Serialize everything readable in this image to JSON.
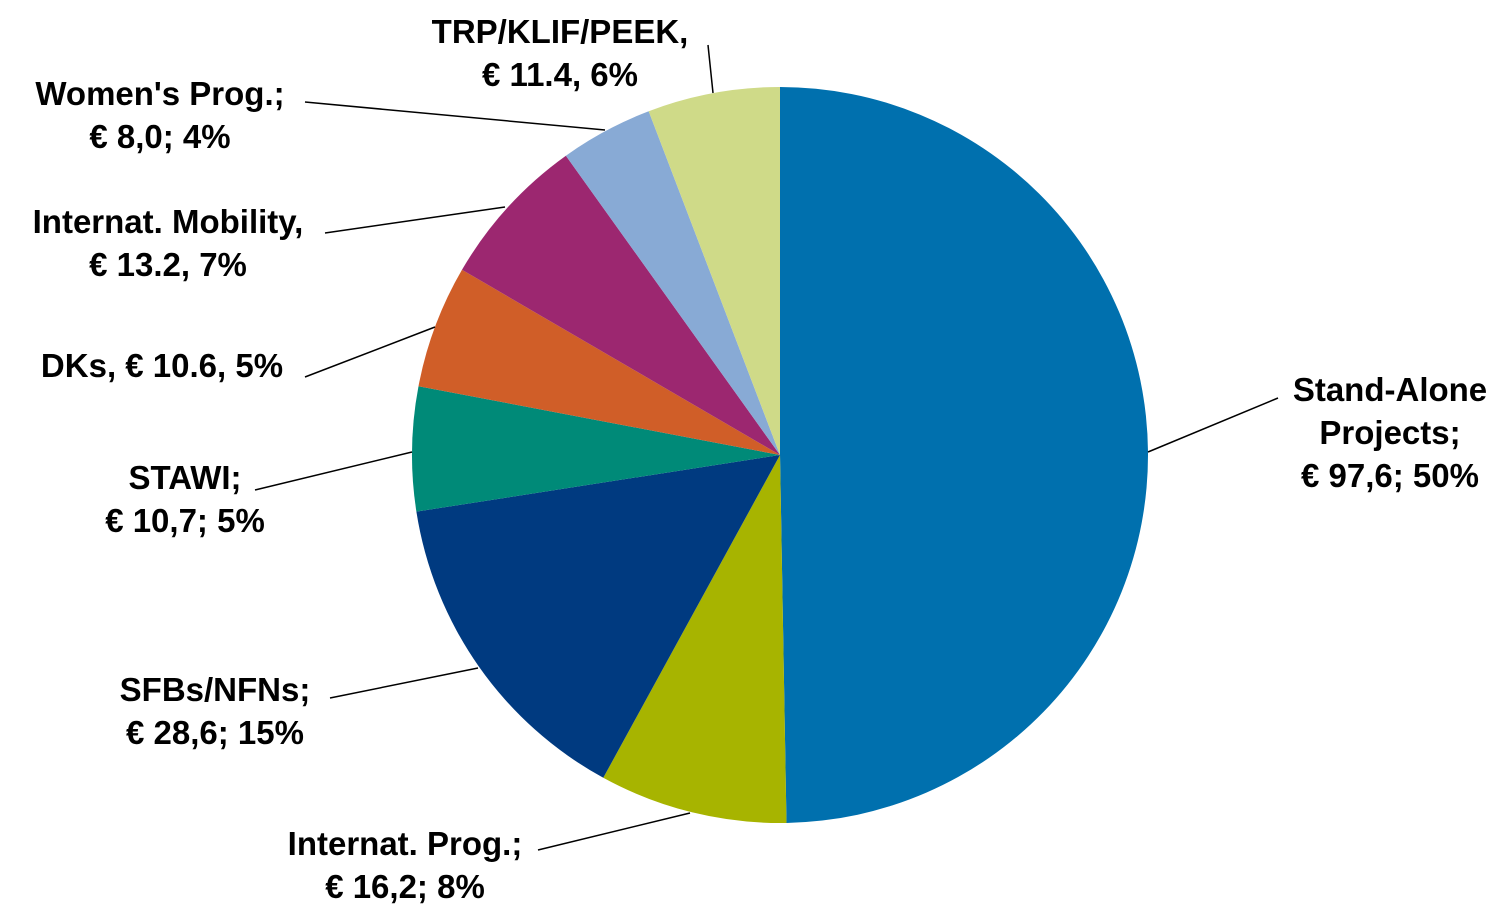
{
  "chart_data": {
    "type": "pie",
    "categories": [
      "Stand-Alone Projects;",
      "Internat. Prog.;",
      "SFBs/NFNs;",
      "STAWI;",
      "DKs,",
      "Internat. Mobility,",
      "Women's Prog.;",
      "TRP/KLIF/PEEK,"
    ],
    "values": [
      97.6,
      16.2,
      28.6,
      10.7,
      10.6,
      13.2,
      8.0,
      11.4
    ],
    "value_labels": [
      "€ 97,6; 50%",
      "€ 16,2; 8%",
      "€ 28,6; 15%",
      "€ 10,7; 5%",
      "€ 10.6, 5%",
      "€ 13.2, 7%",
      "€ 8,0; 4%",
      "€ 11.4, 6%"
    ],
    "colors": [
      "#0070ae",
      "#a7b400",
      "#003a80",
      "#008a78",
      "#d05e28",
      "#9c2770",
      "#88aad5",
      "#cfda88"
    ]
  }
}
